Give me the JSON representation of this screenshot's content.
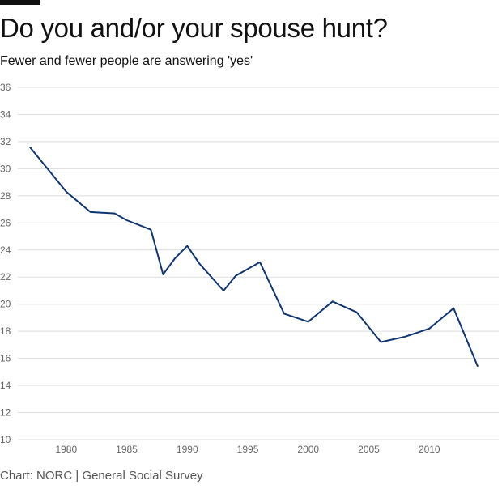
{
  "title": "Do you and/or your spouse hunt?",
  "subtitle": "Fewer and fewer people are answering 'yes'",
  "source": "Chart: NORC | General Social Survey",
  "colors": {
    "line": "#0f3570",
    "grid": "#dddddd",
    "text": "#111111",
    "muted": "#666666"
  },
  "chart_data": {
    "type": "line",
    "title": "Do you and/or your spouse hunt?",
    "subtitle": "Fewer and fewer people are answering 'yes'",
    "xlabel": "",
    "ylabel": "",
    "xlim": [
      1976,
      2015
    ],
    "ylim": [
      10,
      36
    ],
    "x_ticks": [
      1980,
      1985,
      1990,
      1995,
      2000,
      2005,
      2010
    ],
    "y_ticks": [
      10,
      12,
      14,
      16,
      18,
      20,
      22,
      24,
      26,
      28,
      30,
      32,
      34,
      36
    ],
    "grid": "horizontal",
    "series": [
      {
        "values": [
          {
            "x": 1977,
            "y": 31.6
          },
          {
            "x": 1980,
            "y": 28.3
          },
          {
            "x": 1982,
            "y": 26.8
          },
          {
            "x": 1984,
            "y": 26.7
          },
          {
            "x": 1985,
            "y": 26.2
          },
          {
            "x": 1987,
            "y": 25.5
          },
          {
            "x": 1988,
            "y": 22.2
          },
          {
            "x": 1989,
            "y": 23.4
          },
          {
            "x": 1990,
            "y": 24.3
          },
          {
            "x": 1991,
            "y": 23.0
          },
          {
            "x": 1993,
            "y": 21.0
          },
          {
            "x": 1994,
            "y": 22.1
          },
          {
            "x": 1996,
            "y": 23.1
          },
          {
            "x": 1998,
            "y": 19.3
          },
          {
            "x": 2000,
            "y": 18.7
          },
          {
            "x": 2002,
            "y": 20.2
          },
          {
            "x": 2004,
            "y": 19.4
          },
          {
            "x": 2006,
            "y": 17.2
          },
          {
            "x": 2008,
            "y": 17.6
          },
          {
            "x": 2010,
            "y": 18.2
          },
          {
            "x": 2012,
            "y": 19.7
          },
          {
            "x": 2014,
            "y": 15.4
          }
        ]
      }
    ]
  }
}
